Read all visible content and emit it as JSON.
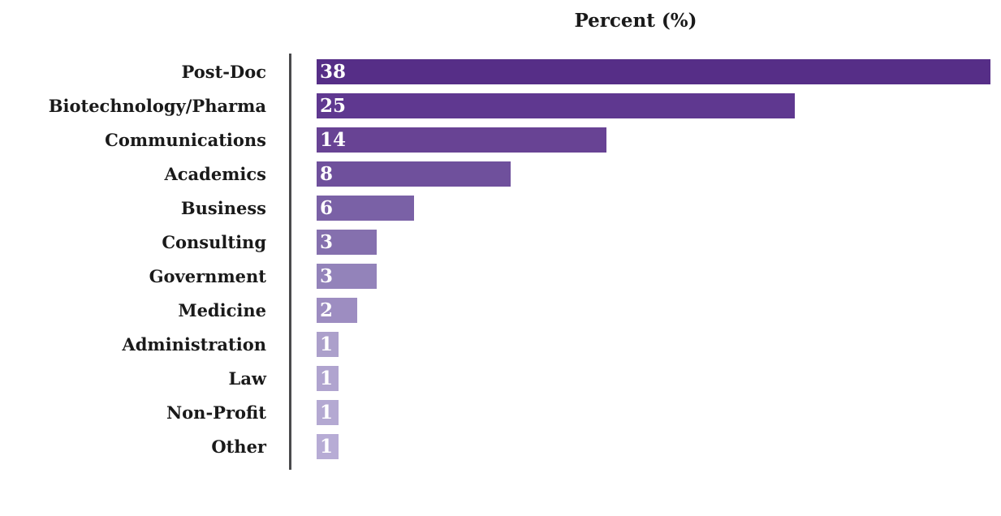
{
  "chart_data": {
    "type": "bar",
    "orientation": "horizontal",
    "title": "Percent (%)",
    "xlabel": "Percent (%)",
    "ylabel": "",
    "categories": [
      "Post-Doc",
      "Biotechnology/Pharma",
      "Communications",
      "Academics",
      "Business",
      "Consulting",
      "Government",
      "Medicine",
      "Administration",
      "Law",
      "Non-Profit",
      "Other"
    ],
    "values": [
      38,
      25,
      14,
      8,
      6,
      3,
      3,
      2,
      1,
      1,
      1,
      1
    ],
    "xlim": [
      0,
      38
    ],
    "grid": false,
    "legend_position": "none",
    "value_label_position": "inside-left",
    "value_text_color": "#ffffff",
    "text_color": "#1a1a1a",
    "axis_color": "#4a4a4c",
    "background": "#ffffff",
    "bar_colors": [
      "#562e87",
      "#5f3890",
      "#684394",
      "#6f509c",
      "#7a61a6",
      "#8570ae",
      "#9383ba",
      "#9d8dc1",
      "#aca0cb",
      "#b0a4cf",
      "#b4a9d2",
      "#b7acd5"
    ],
    "bar_width_pct": [
      100,
      71,
      43,
      28.8,
      14.5,
      8.9,
      8.9,
      6.0,
      3.2,
      3.2,
      3.2,
      3.2
    ]
  }
}
